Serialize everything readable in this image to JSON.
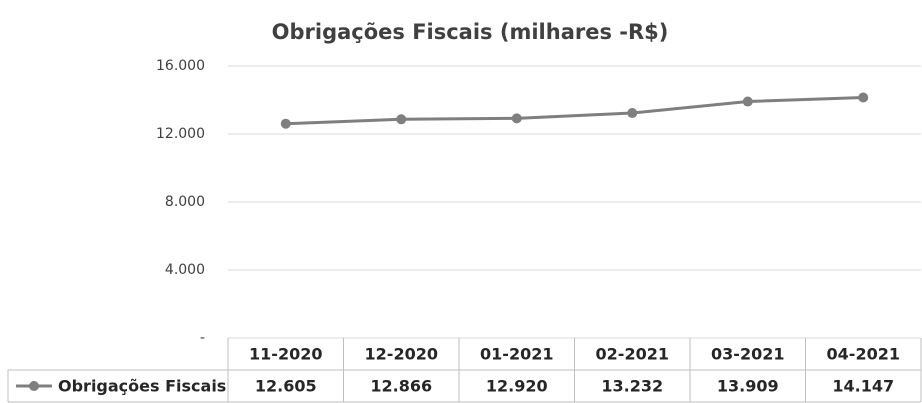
{
  "chart_data": {
    "type": "line",
    "title": "Obrigações Fiscais (milhares -R$)",
    "categories": [
      "11-2020",
      "12-2020",
      "01-2021",
      "02-2021",
      "03-2021",
      "04-2021"
    ],
    "series": [
      {
        "name": "Obrigações Fiscais",
        "color": "#7f7f7f",
        "values": [
          12605,
          12866,
          12920,
          13232,
          13909,
          14147
        ],
        "value_labels": [
          "12.605",
          "12.866",
          "12.920",
          "13.232",
          "13.909",
          "14.147"
        ]
      }
    ],
    "ylim": [
      0,
      16000
    ],
    "yticks": [
      {
        "value": 0,
        "label": "-"
      },
      {
        "value": 4000,
        "label": "4.000"
      },
      {
        "value": 8000,
        "label": "8.000"
      },
      {
        "value": 12000,
        "label": "12.000"
      },
      {
        "value": 16000,
        "label": "16.000"
      }
    ],
    "grid": true
  }
}
